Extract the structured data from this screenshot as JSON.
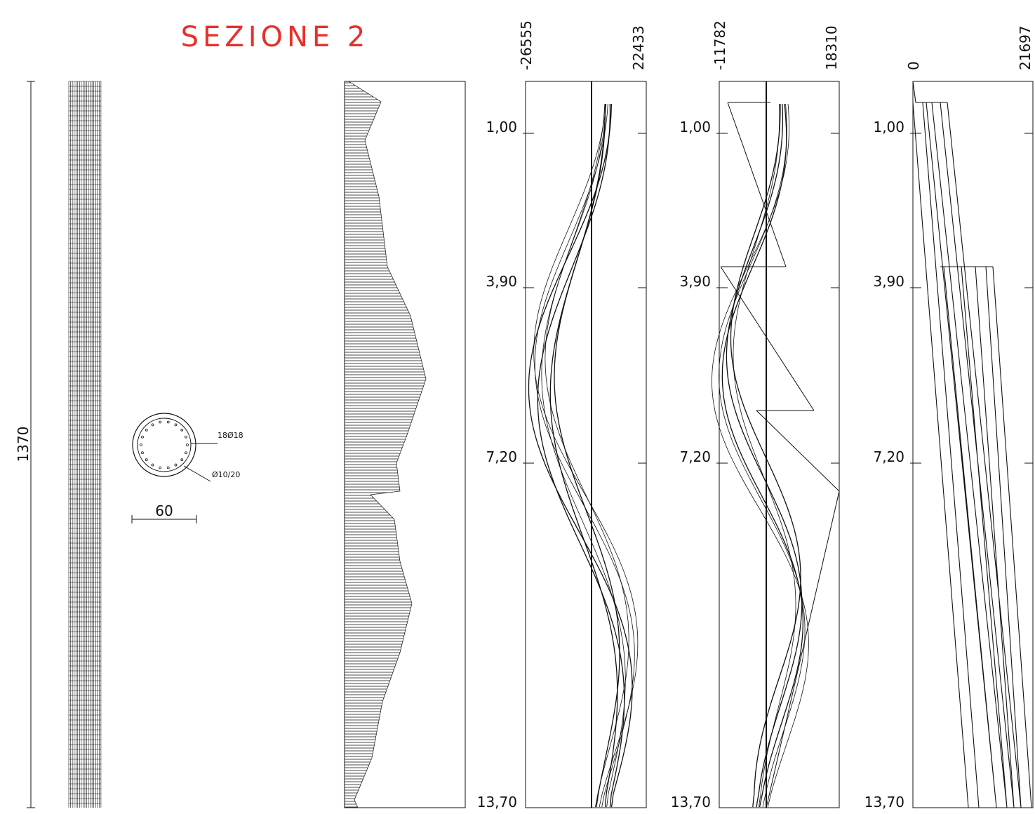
{
  "title": "SEZIONE 2",
  "pile": {
    "length_label": "1370",
    "diameter_label": "60",
    "rebar_long": "18Ø18",
    "rebar_stirrup": "Ø10/20"
  },
  "panels": [
    {
      "min": "-26555",
      "max": "22433"
    },
    {
      "min": "-11782",
      "max": "18310"
    },
    {
      "min": "0",
      "max": "21697"
    }
  ],
  "depth_labels": [
    "1,00",
    "3,90",
    "7,20",
    "13,70"
  ]
}
